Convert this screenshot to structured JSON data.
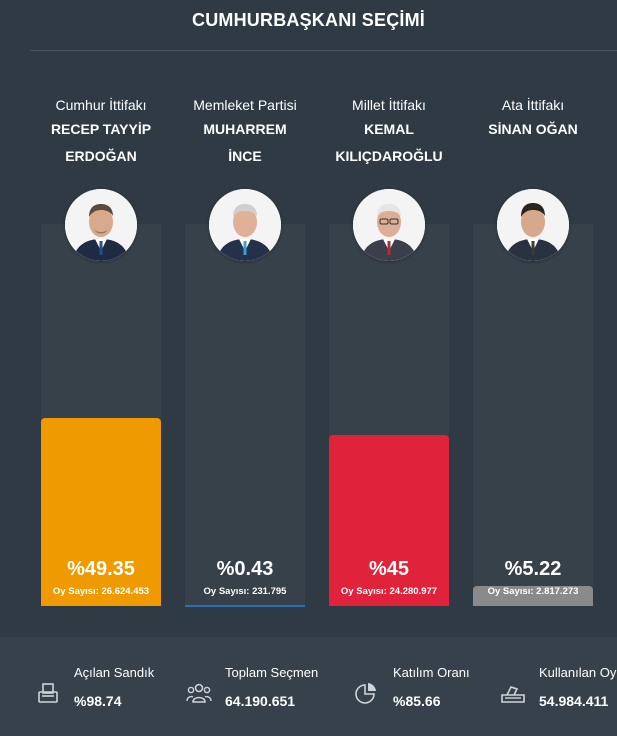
{
  "header": {
    "title": "CUMHURBAŞKANI SEÇİMİ"
  },
  "candidates": [
    {
      "party": "Cumhur İttifakı",
      "name_line1": "RECEP TAYYİP",
      "name_line2": "ERDOĞAN",
      "percent_label": "%49.35",
      "percent": 49.35,
      "votes_label": "Oy Sayısı: 26.624.453",
      "color": "#ee9a00"
    },
    {
      "party": "Memleket Partisi",
      "name_line1": "MUHARREM",
      "name_line2": "İNCE",
      "percent_label": "%0.43",
      "percent": 0.43,
      "votes_label": "Oy Sayısı: 231.795",
      "color": "#2a6fb5"
    },
    {
      "party": "Millet İttifakı",
      "name_line1": "KEMAL",
      "name_line2": "KILIÇDAROĞLU",
      "percent_label": "%45",
      "percent": 45,
      "votes_label": "Oy Sayısı: 24.280.977",
      "color": "#e0233a"
    },
    {
      "party": "Ata İttifakı",
      "name_line1": "SİNAN OĞAN",
      "name_line2": "",
      "percent_label": "%5.22",
      "percent": 5.22,
      "votes_label": "Oy Sayısı: 2.817.273",
      "color": "#8a8a8a"
    }
  ],
  "footer": {
    "stats": [
      {
        "label": "Açılan Sandık",
        "value": "%98.74",
        "icon": "ballot-box-icon"
      },
      {
        "label": "Toplam Seçmen",
        "value": "64.190.651",
        "icon": "people-icon"
      },
      {
        "label": "Katılım Oranı",
        "value": "%85.66",
        "icon": "pie-chart-icon"
      },
      {
        "label": "Kullanılan Oy",
        "value": "54.984.411",
        "icon": "vote-box-icon"
      }
    ]
  }
}
